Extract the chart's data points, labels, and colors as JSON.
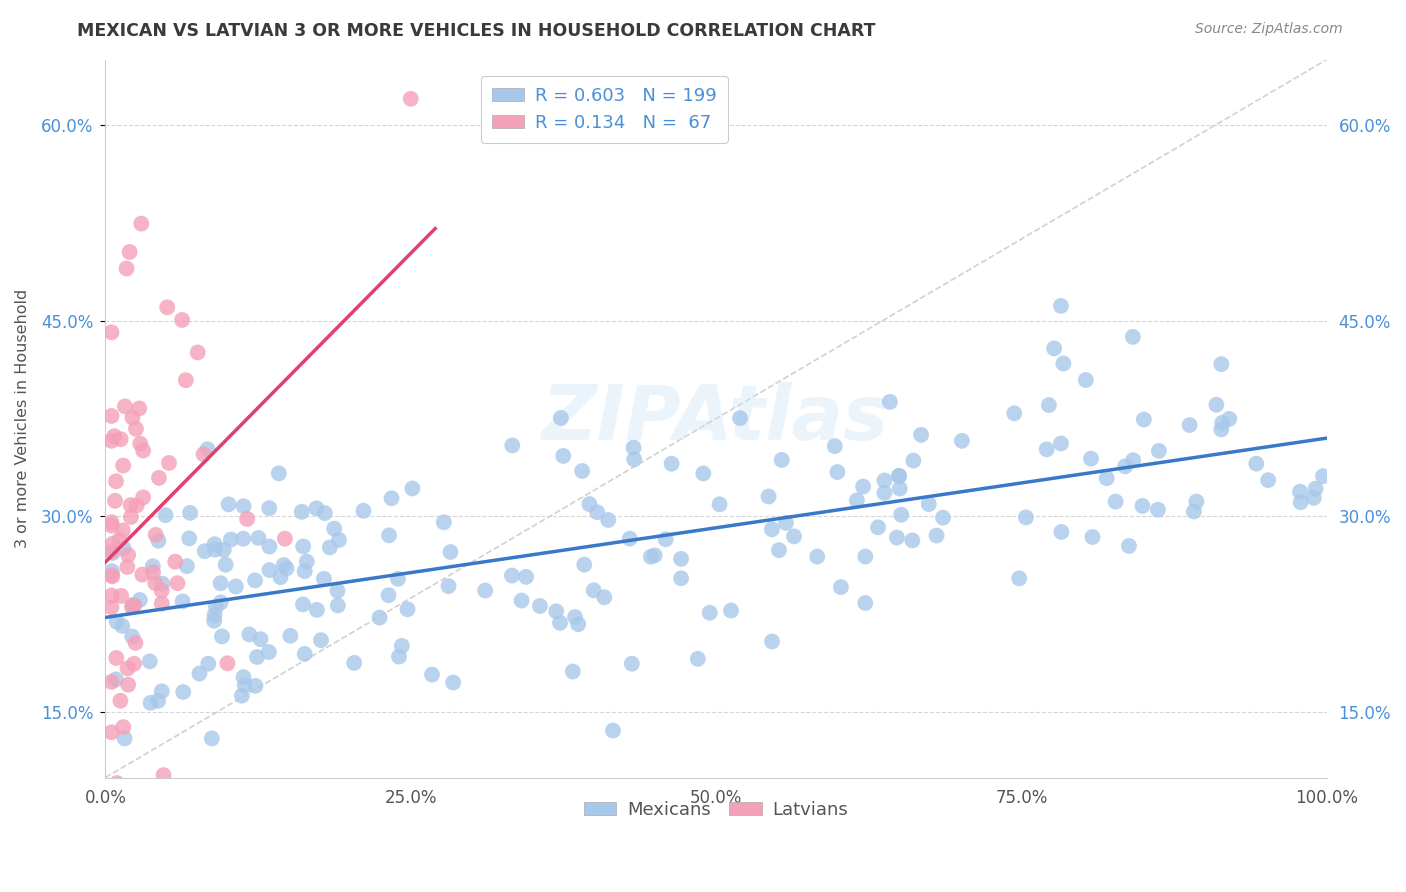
{
  "title": "MEXICAN VS LATVIAN 3 OR MORE VEHICLES IN HOUSEHOLD CORRELATION CHART",
  "source": "Source: ZipAtlas.com",
  "ylabel": "3 or more Vehicles in Household",
  "xlim": [
    0,
    1.0
  ],
  "ylim": [
    0.1,
    0.65
  ],
  "title_color": "#3a3a3a",
  "source_color": "#888888",
  "background_color": "#ffffff",
  "grid_color": "#cccccc",
  "diagonal_color": "#cccccc",
  "blue_color": "#a8c8ea",
  "pink_color": "#f4a0b8",
  "blue_line_color": "#3a78c9",
  "pink_line_color": "#e04070",
  "legend_blue_label": "Mexicans",
  "legend_pink_label": "Latvians",
  "r_blue": 0.603,
  "n_blue": 199,
  "r_pink": 0.134,
  "n_pink": 67,
  "legend_text_color": "#4a90d9",
  "watermark": "ZIPAtlas"
}
